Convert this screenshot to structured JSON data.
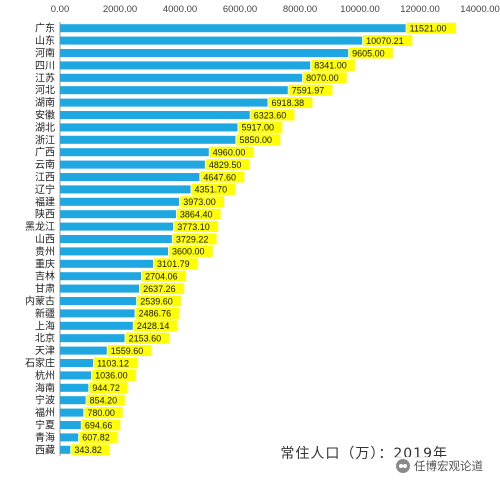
{
  "chart_data": {
    "type": "bar",
    "orientation": "horizontal",
    "categories": [
      "广东",
      "山东",
      "河南",
      "四川",
      "江苏",
      "河北",
      "湖南",
      "安徽",
      "湖北",
      "浙江",
      "广西",
      "云南",
      "江西",
      "辽宁",
      "福建",
      "陕西",
      "黑龙江",
      "山西",
      "贵州",
      "重庆",
      "吉林",
      "甘肃",
      "内蒙古",
      "新疆",
      "上海",
      "北京",
      "天津",
      "石家庄",
      "杭州",
      "海南",
      "宁波",
      "福州",
      "宁夏",
      "青海",
      "西藏"
    ],
    "values": [
      11521.0,
      10070.21,
      9605.0,
      8341.0,
      8070.0,
      7591.97,
      6918.38,
      6323.6,
      5917.0,
      5850.0,
      4960.0,
      4829.5,
      4647.6,
      4351.7,
      3973.0,
      3864.4,
      3773.1,
      3729.22,
      3600.0,
      3101.79,
      2704.06,
      2637.26,
      2539.6,
      2486.76,
      2428.14,
      2153.6,
      1559.6,
      1103.12,
      1036.0,
      944.72,
      854.2,
      780.0,
      694.66,
      607.82,
      343.82
    ],
    "value_labels": [
      "11521.00",
      "10070.21",
      "9605.00",
      "8341.00",
      "8070.00",
      "7591.97",
      "6918.38",
      "6323.60",
      "5917.00",
      "5850.00",
      "4960.00",
      "4829.50",
      "4647.60",
      "4351.70",
      "3973.00",
      "3864.40",
      "3773.10",
      "3729.22",
      "3600.00",
      "3101.79",
      "2704.06",
      "2637.26",
      "2539.60",
      "2486.76",
      "2428.14",
      "2153.60",
      "1559.60",
      "1103.12",
      "1036.00",
      "944.72",
      "854.20",
      "780.00",
      "694.66",
      "607.82",
      "343.82"
    ],
    "xlim": [
      0,
      14000
    ],
    "xticks": [
      0,
      2000,
      4000,
      6000,
      8000,
      10000,
      12000,
      14000
    ],
    "xtick_labels": [
      "0.00",
      "2000.00",
      "4000.00",
      "6000.00",
      "8000.00",
      "10000.00",
      "12000.00",
      "14000.00"
    ],
    "x_axis_position": "top",
    "grid": false,
    "legend": "none",
    "colors": {
      "bar": "#1EA7E1",
      "label_bg": "#FFFF00",
      "axis": "#999999"
    }
  },
  "annotation": {
    "text": "常住人口（万）：2019年"
  },
  "watermark": {
    "icon": "wechat-icon",
    "text": "任博宏观论道"
  }
}
